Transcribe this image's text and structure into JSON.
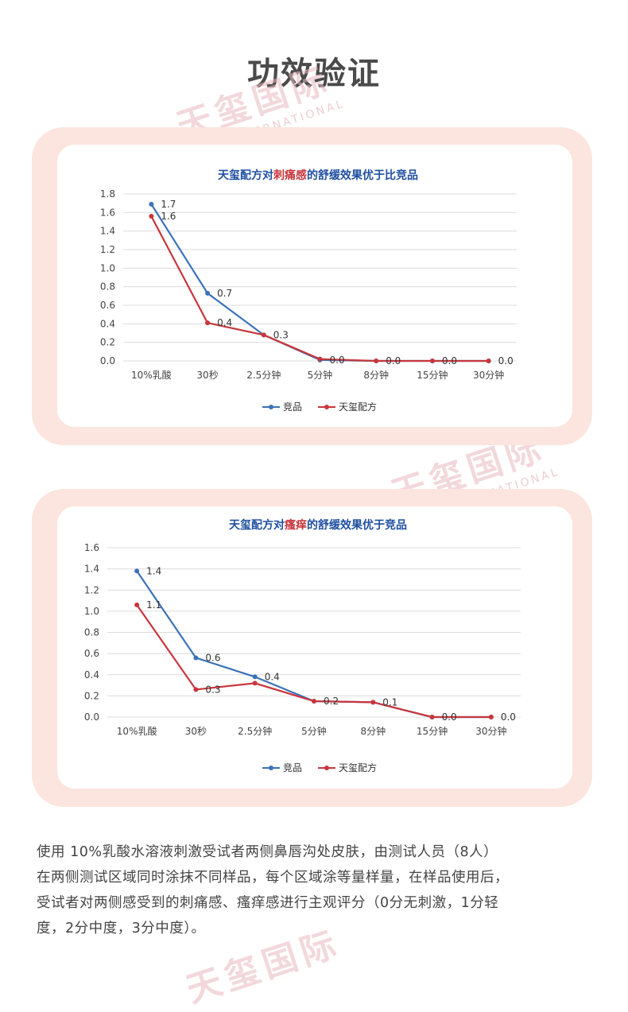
{
  "page": {
    "title": "功效验证",
    "watermark_cn": "天玺国际",
    "watermark_en": "DEVA INTERNATIONAL",
    "description": [
      "使用 10%乳酸水溶液刺激受试者两侧鼻唇沟处皮肤，由测试人员（8人）",
      "在两侧测试区域同时涂抹不同样品，每个区域涂等量样量，在样品使用后，",
      "受试者对两侧感受到的刺痛感、瘙痒感进行主观评分（0分无刺激，1分轻",
      "度，2分中度，3分中度）。"
    ]
  },
  "colors": {
    "competitor": "#3b72b9",
    "tianxi": "#c8363c",
    "frame": "#fbe5de",
    "title_blue": "#1f4fa0",
    "title_red": "#c8363c"
  },
  "chart_data": [
    {
      "type": "line",
      "title_parts": [
        "天玺配方对",
        "刺痛感",
        "的舒缓效果优于比竞品"
      ],
      "categories": [
        "10%乳酸",
        "30秒",
        "2.5分钟",
        "5分钟",
        "8分钟",
        "15分钟",
        "30分钟"
      ],
      "yticks": [
        "0.0",
        "0.2",
        "0.4",
        "0.6",
        "0.8",
        "1.0",
        "1.2",
        "1.4",
        "1.6",
        "1.8"
      ],
      "ylim": [
        0,
        1.8
      ],
      "series": [
        {
          "name": "竞品",
          "values": [
            1.69,
            0.73,
            0.28,
            0.01,
            0.0,
            0.0,
            0.0
          ],
          "labels": [
            "1.7",
            "0.7",
            "0.3",
            "0.0",
            "0.0",
            "0.0",
            "0.0"
          ]
        },
        {
          "name": "天玺配方",
          "values": [
            1.56,
            0.41,
            0.28,
            0.02,
            0.0,
            0.0,
            0.0
          ],
          "labels": [
            "1.6",
            "0.4",
            "",
            "",
            "",
            "",
            ""
          ]
        }
      ],
      "legend": "bottom",
      "grid": true
    },
    {
      "type": "line",
      "title_parts": [
        "天玺配方对",
        "瘙痒",
        "的舒缓效果优于竞品"
      ],
      "categories": [
        "10%乳酸",
        "30秒",
        "2.5分钟",
        "5分钟",
        "8分钟",
        "15分钟",
        "30分钟"
      ],
      "yticks": [
        "0.0",
        "0.2",
        "0.4",
        "0.6",
        "0.8",
        "1.0",
        "1.2",
        "1.4",
        "1.6"
      ],
      "ylim": [
        0,
        1.6
      ],
      "series": [
        {
          "name": "竞品",
          "values": [
            1.38,
            0.56,
            0.38,
            0.15,
            0.14,
            0.0,
            0.0
          ],
          "labels": [
            "1.4",
            "0.6",
            "0.4",
            "0.2",
            "0.1",
            "0.0",
            "0.0"
          ]
        },
        {
          "name": "天玺配方",
          "values": [
            1.06,
            0.26,
            0.32,
            0.15,
            0.14,
            0.0,
            0.0
          ],
          "labels": [
            "1.1",
            "0.3",
            "",
            "",
            "",
            "",
            ""
          ]
        }
      ],
      "legend": "bottom",
      "grid": true
    }
  ]
}
